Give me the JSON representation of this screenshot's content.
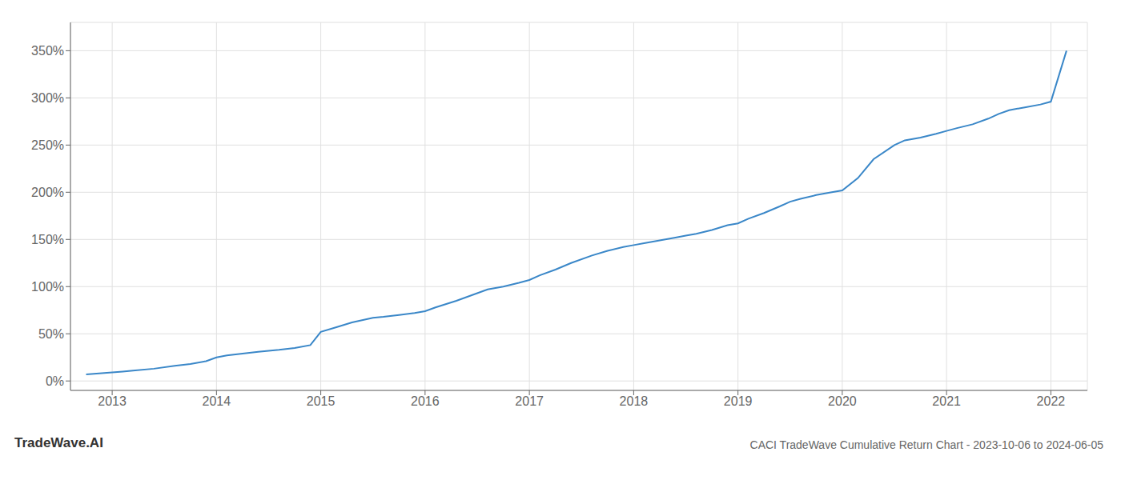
{
  "chart_data": {
    "type": "line",
    "title": "CACI TradeWave Cumulative Return Chart - 2023-10-06 to 2024-06-05",
    "annotations": [
      "TradeWave.AI"
    ],
    "x": [
      2012.75,
      2013.0,
      2013.1,
      2013.2,
      2013.4,
      2013.6,
      2013.75,
      2013.9,
      2014.0,
      2014.1,
      2014.25,
      2014.4,
      2014.6,
      2014.75,
      2014.9,
      2015.0,
      2015.15,
      2015.3,
      2015.5,
      2015.6,
      2015.75,
      2015.9,
      2016.0,
      2016.1,
      2016.3,
      2016.5,
      2016.6,
      2016.75,
      2016.9,
      2017.0,
      2017.1,
      2017.25,
      2017.4,
      2017.6,
      2017.75,
      2017.9,
      2018.0,
      2018.1,
      2018.25,
      2018.4,
      2018.5,
      2018.6,
      2018.75,
      2018.9,
      2019.0,
      2019.1,
      2019.25,
      2019.4,
      2019.5,
      2019.6,
      2019.75,
      2019.9,
      2020.0,
      2020.15,
      2020.3,
      2020.5,
      2020.6,
      2020.75,
      2020.9,
      2021.0,
      2021.1,
      2021.25,
      2021.4,
      2021.5,
      2021.6,
      2021.75,
      2021.9,
      2022.0,
      2022.15
    ],
    "values": [
      0.07,
      0.09,
      0.1,
      0.11,
      0.13,
      0.16,
      0.18,
      0.21,
      0.25,
      0.27,
      0.29,
      0.31,
      0.33,
      0.35,
      0.38,
      0.52,
      0.57,
      0.62,
      0.67,
      0.68,
      0.7,
      0.72,
      0.74,
      0.78,
      0.85,
      0.93,
      0.97,
      1.0,
      1.04,
      1.07,
      1.12,
      1.18,
      1.25,
      1.33,
      1.38,
      1.42,
      1.44,
      1.46,
      1.49,
      1.52,
      1.54,
      1.56,
      1.6,
      1.65,
      1.67,
      1.72,
      1.78,
      1.85,
      1.9,
      1.93,
      1.97,
      2.0,
      2.02,
      2.15,
      2.35,
      2.5,
      2.55,
      2.58,
      2.62,
      2.65,
      2.68,
      2.72,
      2.78,
      2.83,
      2.87,
      2.9,
      2.93,
      2.96,
      3.5
    ],
    "color": "#3a87c8",
    "xlim": [
      2012.6,
      2022.35
    ],
    "xticks": [
      2013,
      2014,
      2015,
      2016,
      2017,
      2018,
      2019,
      2020,
      2021,
      2022
    ],
    "ylim": [
      -0.1,
      3.8
    ],
    "yticks": [
      {
        "value": 0.0,
        "label": "0%"
      },
      {
        "value": 0.5,
        "label": "50%"
      },
      {
        "value": 1.0,
        "label": "100%"
      },
      {
        "value": 1.5,
        "label": "150%"
      },
      {
        "value": 2.0,
        "label": "200%"
      },
      {
        "value": 2.5,
        "label": "250%"
      },
      {
        "value": 3.0,
        "label": "300%"
      },
      {
        "value": 3.5,
        "label": "350%"
      }
    ],
    "grid": true
  }
}
